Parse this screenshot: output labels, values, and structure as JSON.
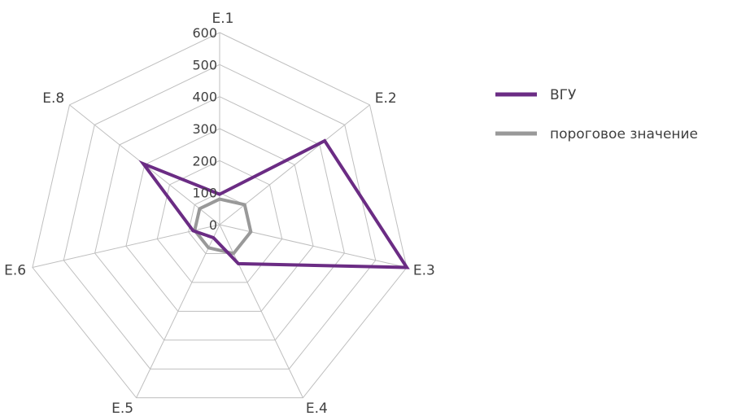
{
  "chart_data": {
    "type": "radar",
    "categories": [
      "E.1",
      "E.2",
      "E.3",
      "E.4",
      "E.5",
      "E.6",
      "E.8"
    ],
    "range": [
      0,
      600
    ],
    "ticks": [
      "0",
      "100",
      "200",
      "300",
      "400",
      "500",
      "600"
    ],
    "grid": true,
    "legend_position": "right",
    "series": [
      {
        "name": "ВГУ",
        "color": "#6b2c84",
        "values": [
          95,
          420,
          600,
          135,
          45,
          85,
          305
        ]
      },
      {
        "name": "пороговое значение",
        "color": "#999999",
        "values": [
          80,
          100,
          100,
          100,
          80,
          80,
          80
        ]
      }
    ]
  }
}
